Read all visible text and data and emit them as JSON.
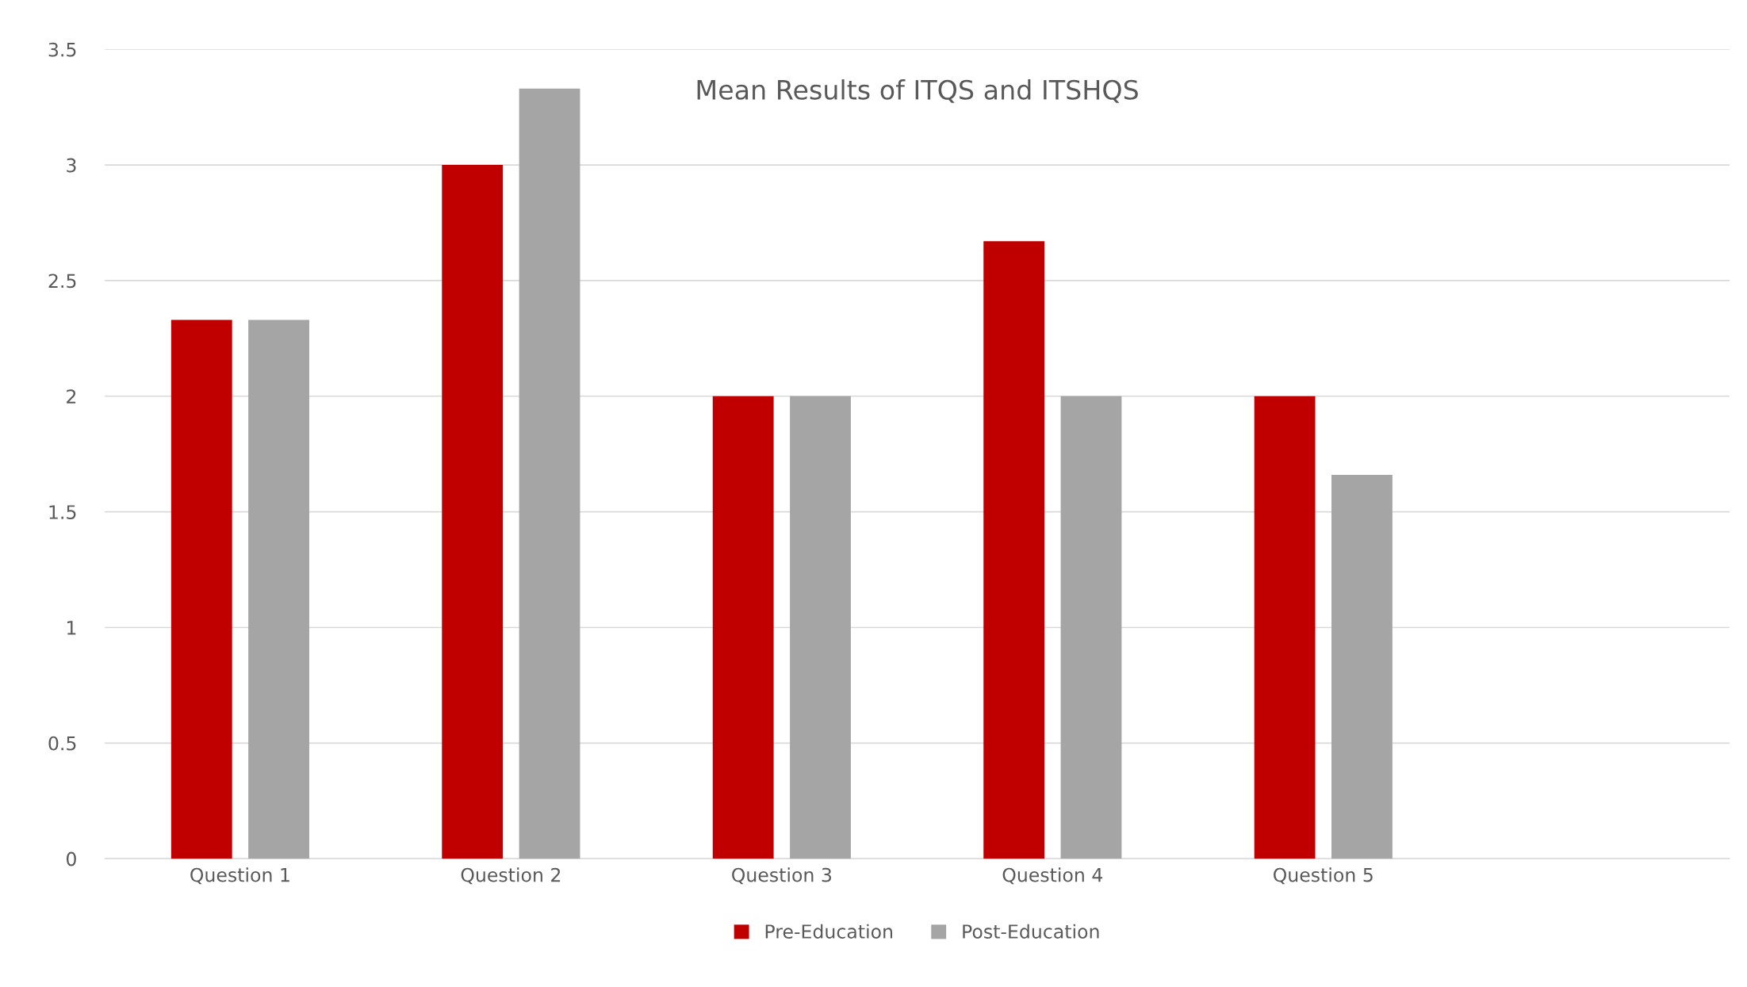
{
  "chart_data": {
    "type": "bar",
    "title": "Mean Results of ITQS and ITSHQS",
    "categories": [
      "Question 1",
      "Question 2",
      "Question 3",
      "Question 4",
      "Question 5",
      null
    ],
    "series": [
      {
        "name": "Pre-Education",
        "color": "#c00000",
        "values": [
          2.33,
          3.0,
          2.0,
          2.67,
          2.0,
          null
        ]
      },
      {
        "name": "Post-Education",
        "color": "#a5a5a5",
        "values": [
          2.33,
          3.33,
          2.0,
          2.0,
          1.66,
          null
        ]
      }
    ],
    "ylim": [
      0,
      3.5
    ],
    "yticks": [
      0,
      0.5,
      1,
      1.5,
      2,
      2.5,
      3,
      3.5
    ],
    "grid": "y",
    "legend": "bottom"
  }
}
